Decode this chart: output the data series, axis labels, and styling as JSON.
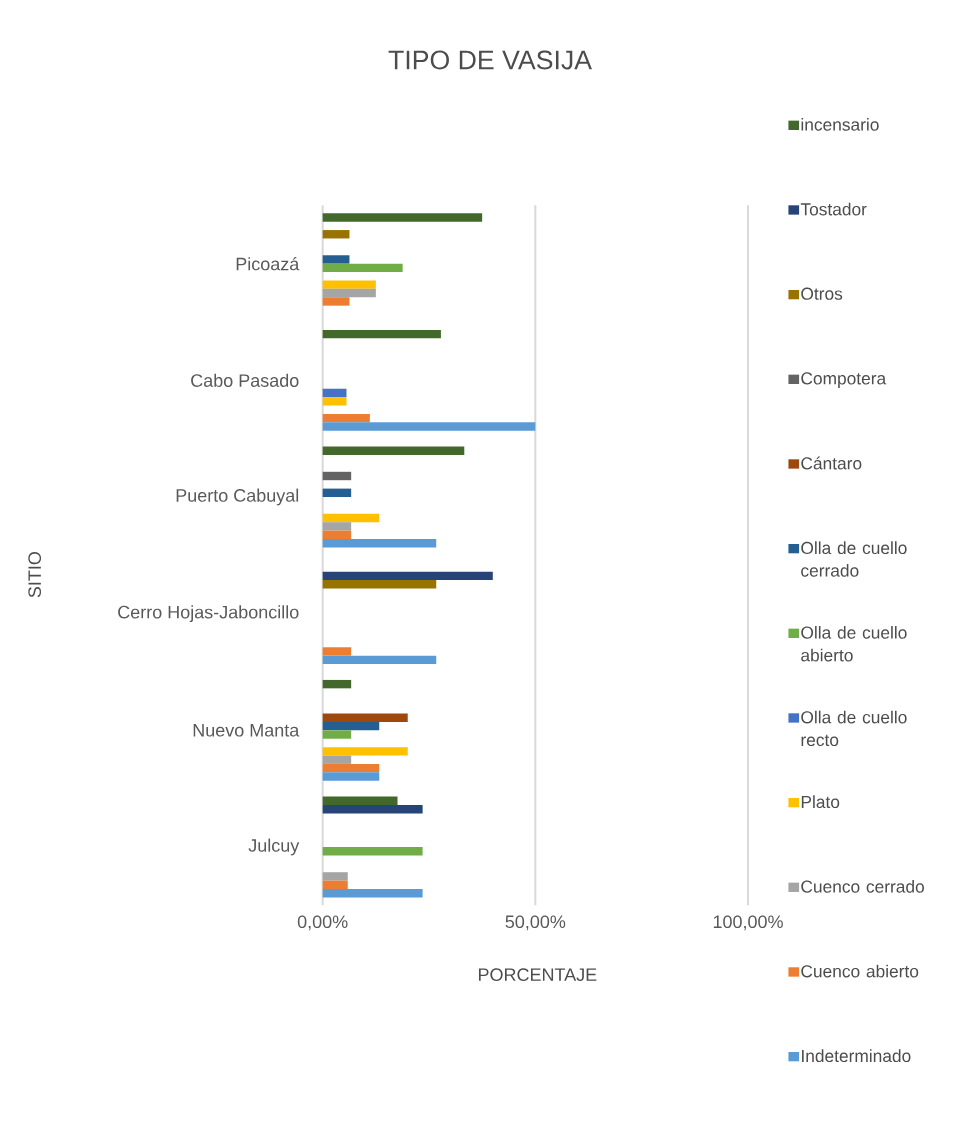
{
  "chart_data": {
    "type": "bar",
    "orientation": "horizontal",
    "title": "TIPO DE VASIJA",
    "xlabel": "PORCENTAJE",
    "ylabel": "SITIO",
    "categories": [
      "Picoazá",
      "Cabo Pasado",
      "Puerto Cabuyal",
      "Cerro Hojas-Jaboncillo",
      "Nuevo Manta",
      "Julcuy"
    ],
    "series": [
      {
        "name": "incensario",
        "color": "#43682b",
        "values": [
          37.5,
          27.8,
          33.3,
          0,
          6.7,
          17.6
        ]
      },
      {
        "name": "Tostador",
        "color": "#264478",
        "values": [
          0,
          0,
          0,
          40,
          0,
          23.5
        ]
      },
      {
        "name": "Otros",
        "color": "#997300",
        "values": [
          6.3,
          0,
          0,
          26.7,
          0,
          0
        ]
      },
      {
        "name": "Compotera",
        "color": "#636363",
        "values": [
          0,
          0,
          6.7,
          0,
          0,
          0
        ]
      },
      {
        "name": "Cántaro",
        "color": "#9e480e",
        "values": [
          0,
          0,
          0,
          0,
          20,
          0
        ]
      },
      {
        "name": "Olla de cuello cerrado",
        "color": "#255e91",
        "values": [
          6.3,
          0,
          6.7,
          0,
          13.3,
          0
        ]
      },
      {
        "name": "Olla de cuello abierto",
        "color": "#70ad47",
        "values": [
          18.8,
          0,
          0,
          0,
          6.7,
          23.5
        ]
      },
      {
        "name": "Olla de cuello recto",
        "color": "#4472c4",
        "values": [
          0,
          5.6,
          0,
          0,
          0,
          0
        ]
      },
      {
        "name": "Plato",
        "color": "#ffc000",
        "values": [
          12.5,
          5.6,
          13.3,
          0,
          20,
          0
        ]
      },
      {
        "name": "Cuenco cerrado",
        "color": "#a5a5a5",
        "values": [
          12.5,
          0,
          6.7,
          0,
          6.7,
          5.9
        ]
      },
      {
        "name": "Cuenco abierto",
        "color": "#ed7d31",
        "values": [
          6.3,
          11.1,
          6.7,
          6.7,
          13.3,
          5.9
        ]
      },
      {
        "name": "Indeterminado",
        "color": "#5b9bd5",
        "values": [
          0,
          50,
          26.7,
          26.7,
          13.3,
          23.5
        ]
      }
    ],
    "xlim": [
      0,
      100
    ],
    "xticks": [
      {
        "value": 0,
        "label": "0,00%"
      },
      {
        "value": 50,
        "label": "50,00%"
      },
      {
        "value": 100,
        "label": "100,00%"
      }
    ],
    "grid": "x",
    "legend": "right"
  }
}
